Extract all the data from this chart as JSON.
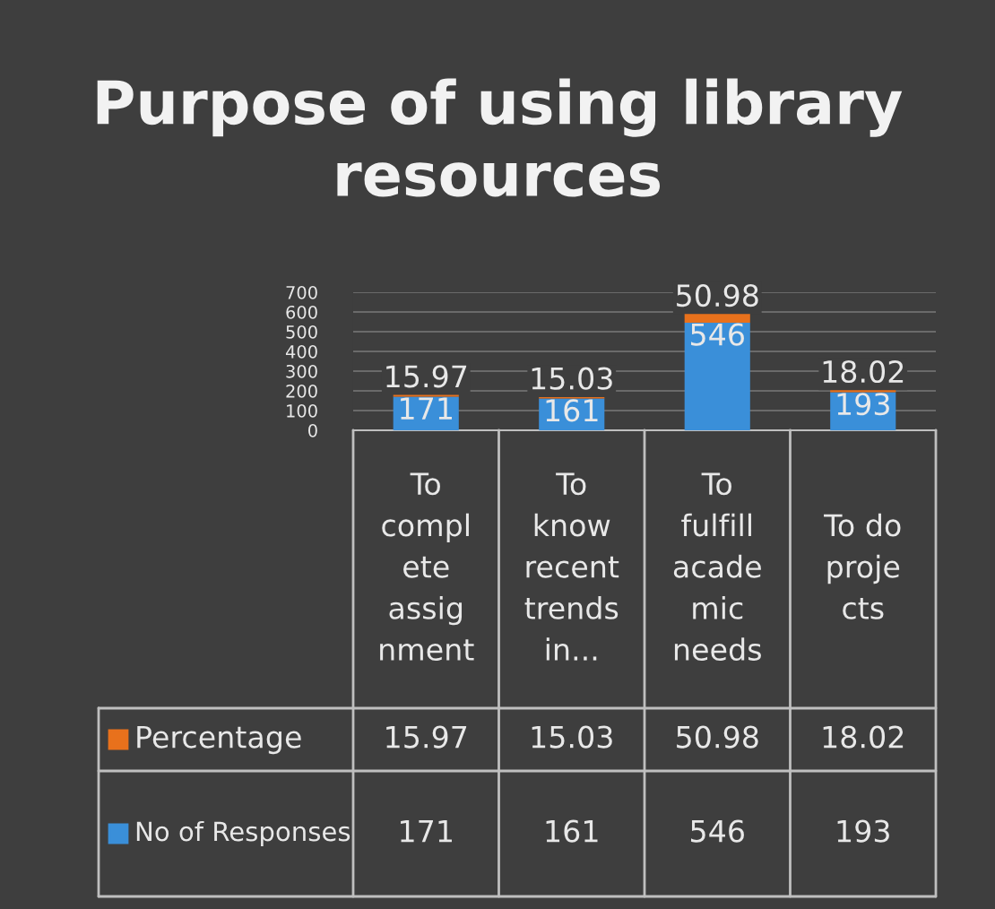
{
  "chart_data": {
    "type": "bar",
    "title": "Purpose of using library resources",
    "categories": [
      "To complete assignment",
      "To know recent trends in...",
      "To fulfill academic needs",
      "To do projects"
    ],
    "stacked": true,
    "series": [
      {
        "name": "No of Responses",
        "color": "#3a8fd9",
        "values": [
          171,
          161,
          546,
          193
        ]
      },
      {
        "name": "Percentage",
        "color": "#e8711c",
        "values": [
          15.97,
          15.03,
          50.98,
          18.02
        ]
      }
    ],
    "annotations": [
      {
        "text": "15.97",
        "x": "To complete assignment",
        "y": 186.97
      },
      {
        "text": "171",
        "x": "To complete assignment",
        "y": 171
      },
      {
        "text": "15.03",
        "x": "To know recent trends in...",
        "y": 176.03
      },
      {
        "text": "161",
        "x": "To know recent trends in...",
        "y": 161
      },
      {
        "text": "50.98",
        "x": "To fulfill academic needs",
        "y": 596.98
      },
      {
        "text": "546",
        "x": "To fulfill academic needs",
        "y": 546
      },
      {
        "text": "18.02",
        "x": "To do projects",
        "y": 211.02
      },
      {
        "text": "193",
        "x": "To do projects",
        "y": 193
      }
    ],
    "ylim": [
      0,
      700
    ],
    "yticks": [
      0,
      100,
      200,
      300,
      400,
      500,
      600,
      700
    ],
    "grid": "y",
    "data_labels": true,
    "legend": "bottom"
  }
}
